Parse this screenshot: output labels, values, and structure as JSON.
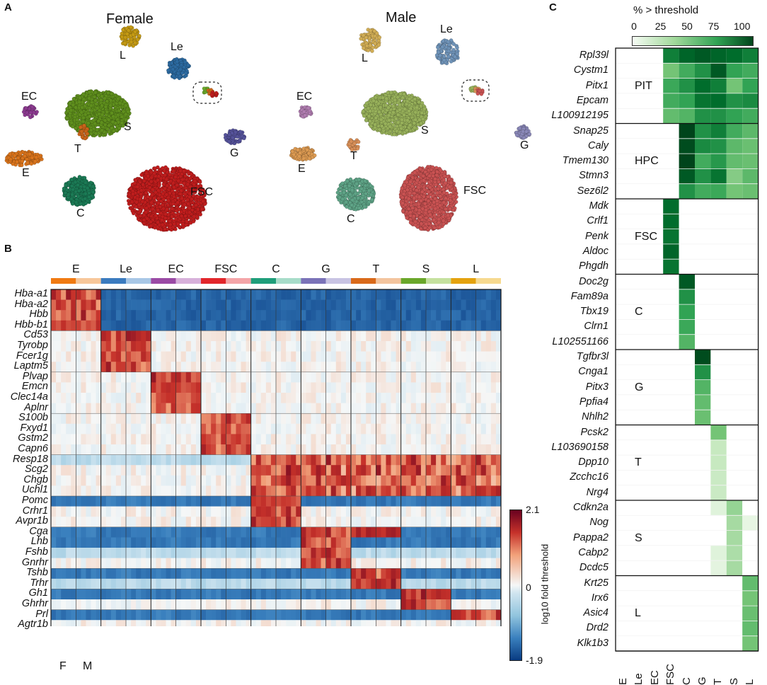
{
  "panels": {
    "a": "A",
    "b": "B",
    "c": "C"
  },
  "panel_a": {
    "female_title": "Female",
    "male_title": "Male",
    "female_clusters": [
      {
        "label": "L",
        "color": "#c49a14"
      },
      {
        "label": "Le",
        "color": "#2c6aa0"
      },
      {
        "label": "EC",
        "color": "#8b3a8f"
      },
      {
        "label": "S",
        "color": "#5f8f1d"
      },
      {
        "label": "T",
        "color": "#c9651a"
      },
      {
        "label": "G",
        "color": "#55529a"
      },
      {
        "label": "E",
        "color": "#d9741c"
      },
      {
        "label": "C",
        "color": "#1b7a55"
      },
      {
        "label": "FSC",
        "color": "#bf1d1d"
      }
    ],
    "male_clusters": [
      {
        "label": "L",
        "color": "#d1ad55"
      },
      {
        "label": "Le",
        "color": "#6f93b8"
      },
      {
        "label": "EC",
        "color": "#b07db0"
      },
      {
        "label": "S",
        "color": "#97b05a"
      },
      {
        "label": "T",
        "color": "#d88f58"
      },
      {
        "label": "G",
        "color": "#8a88b8"
      },
      {
        "label": "E",
        "color": "#dc9a52"
      },
      {
        "label": "C",
        "color": "#5ea386"
      },
      {
        "label": "FSC",
        "color": "#c95252"
      }
    ]
  },
  "panel_b": {
    "clusters": [
      "E",
      "Le",
      "EC",
      "FSC",
      "C",
      "G",
      "T",
      "S",
      "L"
    ],
    "cluster_colors": [
      [
        "#f07a12",
        "#f7c79a"
      ],
      [
        "#3b7bbf",
        "#a8c7e6"
      ],
      [
        "#9a4aa5",
        "#d7b0da"
      ],
      [
        "#e2262b",
        "#f4a5a8"
      ],
      [
        "#1f9e7a",
        "#a7dcc9"
      ],
      [
        "#7a72b8",
        "#c8c3e3"
      ],
      [
        "#d9691a",
        "#f3c49e"
      ],
      [
        "#6aa72a",
        "#c5e19e"
      ],
      [
        "#e4a20e",
        "#f6d98f"
      ]
    ],
    "genes": [
      "Hba-a1",
      "Hba-a2",
      "Hbb",
      "Hbb-b1",
      "Cd53",
      "Tyrobp",
      "Fcer1g",
      "Laptm5",
      "Plvap",
      "Emcn",
      "Clec14a",
      "Aplnr",
      "S100b",
      "Fxyd1",
      "Gstm2",
      "Capn6",
      "Resp18",
      "Scg2",
      "Chgb",
      "Uchl1",
      "Pomc",
      "Crhr1",
      "Avpr1b",
      "Cga",
      "Lhb",
      "Fshb",
      "Gnrhr",
      "Tshb",
      "Trhr",
      "Gh1",
      "Ghrhr",
      "Prl",
      "Agtr1b"
    ],
    "sex_labels": {
      "f": "F",
      "m": "M"
    },
    "colorbar": {
      "max": "2.1",
      "mid": "0",
      "min": "-1.9",
      "label": "log10 fold threshold"
    }
  },
  "panel_c": {
    "title": "% > threshold",
    "scale_ticks": [
      "0",
      "25",
      "50",
      "75",
      "100"
    ],
    "columns": [
      "E",
      "Le",
      "EC",
      "FSC",
      "C",
      "G",
      "T",
      "S",
      "L"
    ],
    "groups": [
      {
        "name": "PIT",
        "genes": [
          "Rpl39l",
          "Cystm1",
          "Pitx1",
          "Epcam",
          "L100912195"
        ]
      },
      {
        "name": "HPC",
        "genes": [
          "Snap25",
          "Caly",
          "Tmem130",
          "Stmn3",
          "Sez6l2"
        ]
      },
      {
        "name": "FSC",
        "genes": [
          "Mdk",
          "Crlf1",
          "Penk",
          "Aldoc",
          "Phgdh"
        ]
      },
      {
        "name": "C",
        "genes": [
          "Doc2g",
          "Fam89a",
          "Tbx19",
          "Clrn1",
          "L102551166"
        ]
      },
      {
        "name": "G",
        "genes": [
          "Tgfbr3l",
          "Cnga1",
          "Pitx3",
          "Ppfia4",
          "Nhlh2"
        ]
      },
      {
        "name": "T",
        "genes": [
          "Pcsk2",
          "L103690158",
          "Dpp10",
          "Zcchc16",
          "Nrg4"
        ]
      },
      {
        "name": "S",
        "genes": [
          "Cdkn2a",
          "Nog",
          "Pappa2",
          "Cabp2",
          "Dcdc5"
        ]
      },
      {
        "name": "L",
        "genes": [
          "Krt25",
          "Irx6",
          "Asic4",
          "Drd2",
          "Klk1b3"
        ]
      }
    ],
    "values": [
      [
        0,
        0,
        0,
        85,
        92,
        95,
        92,
        90,
        85
      ],
      [
        0,
        0,
        0,
        55,
        70,
        80,
        95,
        75,
        70
      ],
      [
        0,
        0,
        0,
        72,
        80,
        90,
        85,
        55,
        75
      ],
      [
        0,
        0,
        0,
        70,
        75,
        88,
        90,
        80,
        82
      ],
      [
        0,
        0,
        0,
        60,
        65,
        80,
        80,
        75,
        70
      ],
      [
        0,
        0,
        0,
        0,
        100,
        80,
        85,
        70,
        62
      ],
      [
        0,
        0,
        0,
        0,
        98,
        82,
        80,
        62,
        58
      ],
      [
        0,
        0,
        0,
        0,
        100,
        70,
        78,
        60,
        58
      ],
      [
        0,
        0,
        0,
        0,
        95,
        80,
        88,
        50,
        62
      ],
      [
        0,
        0,
        0,
        0,
        80,
        70,
        72,
        55,
        58
      ],
      [
        0,
        0,
        0,
        90,
        0,
        0,
        0,
        0,
        0
      ],
      [
        0,
        0,
        0,
        90,
        0,
        0,
        0,
        0,
        0
      ],
      [
        0,
        0,
        0,
        88,
        0,
        0,
        0,
        0,
        0
      ],
      [
        0,
        0,
        0,
        92,
        0,
        0,
        0,
        0,
        0
      ],
      [
        0,
        0,
        0,
        88,
        0,
        0,
        0,
        0,
        0
      ],
      [
        0,
        0,
        0,
        0,
        95,
        0,
        0,
        0,
        0
      ],
      [
        0,
        0,
        0,
        0,
        80,
        0,
        0,
        0,
        0
      ],
      [
        0,
        0,
        0,
        0,
        75,
        0,
        0,
        0,
        0
      ],
      [
        0,
        0,
        0,
        0,
        72,
        0,
        0,
        0,
        0
      ],
      [
        0,
        0,
        0,
        0,
        65,
        0,
        0,
        0,
        0
      ],
      [
        0,
        0,
        0,
        0,
        0,
        98,
        0,
        0,
        0
      ],
      [
        0,
        0,
        0,
        0,
        0,
        80,
        0,
        0,
        0
      ],
      [
        0,
        0,
        0,
        0,
        0,
        65,
        0,
        0,
        0
      ],
      [
        0,
        0,
        0,
        0,
        0,
        60,
        0,
        0,
        0
      ],
      [
        0,
        0,
        0,
        0,
        0,
        58,
        0,
        0,
        0
      ],
      [
        0,
        0,
        0,
        0,
        0,
        0,
        55,
        0,
        0
      ],
      [
        0,
        0,
        0,
        0,
        0,
        0,
        30,
        0,
        0
      ],
      [
        0,
        0,
        0,
        0,
        0,
        0,
        30,
        0,
        0
      ],
      [
        0,
        0,
        0,
        0,
        0,
        0,
        28,
        0,
        0
      ],
      [
        0,
        0,
        0,
        0,
        0,
        0,
        28,
        0,
        0
      ],
      [
        0,
        0,
        0,
        0,
        0,
        0,
        15,
        45,
        0
      ],
      [
        0,
        0,
        0,
        0,
        0,
        0,
        0,
        40,
        10
      ],
      [
        0,
        0,
        0,
        0,
        0,
        0,
        0,
        40,
        0
      ],
      [
        0,
        0,
        0,
        0,
        0,
        0,
        15,
        38,
        0
      ],
      [
        0,
        0,
        0,
        0,
        0,
        0,
        12,
        40,
        0
      ],
      [
        0,
        0,
        0,
        0,
        0,
        0,
        0,
        0,
        60
      ],
      [
        0,
        0,
        0,
        0,
        0,
        0,
        0,
        0,
        55
      ],
      [
        0,
        0,
        0,
        0,
        0,
        0,
        0,
        0,
        58
      ],
      [
        0,
        0,
        0,
        0,
        0,
        0,
        0,
        0,
        60
      ],
      [
        0,
        0,
        0,
        0,
        0,
        0,
        0,
        0,
        55
      ]
    ]
  }
}
